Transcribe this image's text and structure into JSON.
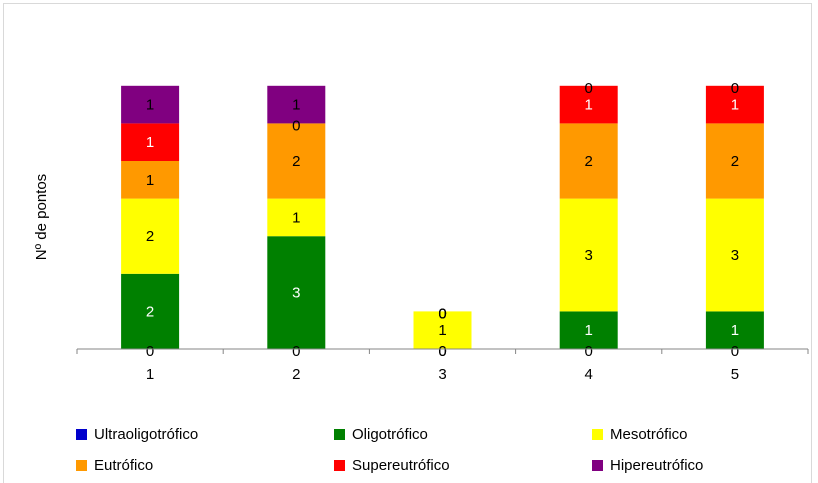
{
  "chart_data": {
    "type": "bar",
    "stacked": true,
    "title": "",
    "xlabel": "",
    "ylabel": "Nº de pontos",
    "ylim": [
      0,
      7
    ],
    "grid": false,
    "legend_position": "bottom",
    "categories": [
      "1",
      "2",
      "3",
      "4",
      "5"
    ],
    "series": [
      {
        "name": "Ultraoligotrófico",
        "color": "#0000cc",
        "label_color": "#000000",
        "values": [
          0,
          0,
          0,
          0,
          0
        ]
      },
      {
        "name": "Oligotrófico",
        "color": "#008000",
        "label_color": "#ffffff",
        "values": [
          2,
          3,
          0,
          1,
          1
        ]
      },
      {
        "name": "Mesotrófico",
        "color": "#ffff00",
        "label_color": "#000000",
        "values": [
          2,
          1,
          1,
          3,
          3
        ]
      },
      {
        "name": "Eutrófico",
        "color": "#ff9900",
        "label_color": "#000000",
        "values": [
          1,
          2,
          0,
          2,
          2
        ]
      },
      {
        "name": "Supereutrófico",
        "color": "#ff0000",
        "label_color": "#ffffff",
        "values": [
          1,
          0,
          0,
          1,
          1
        ]
      },
      {
        "name": "Hipereutrófico",
        "color": "#800080",
        "label_color": "#000000",
        "values": [
          1,
          1,
          0,
          0,
          0
        ]
      }
    ]
  }
}
